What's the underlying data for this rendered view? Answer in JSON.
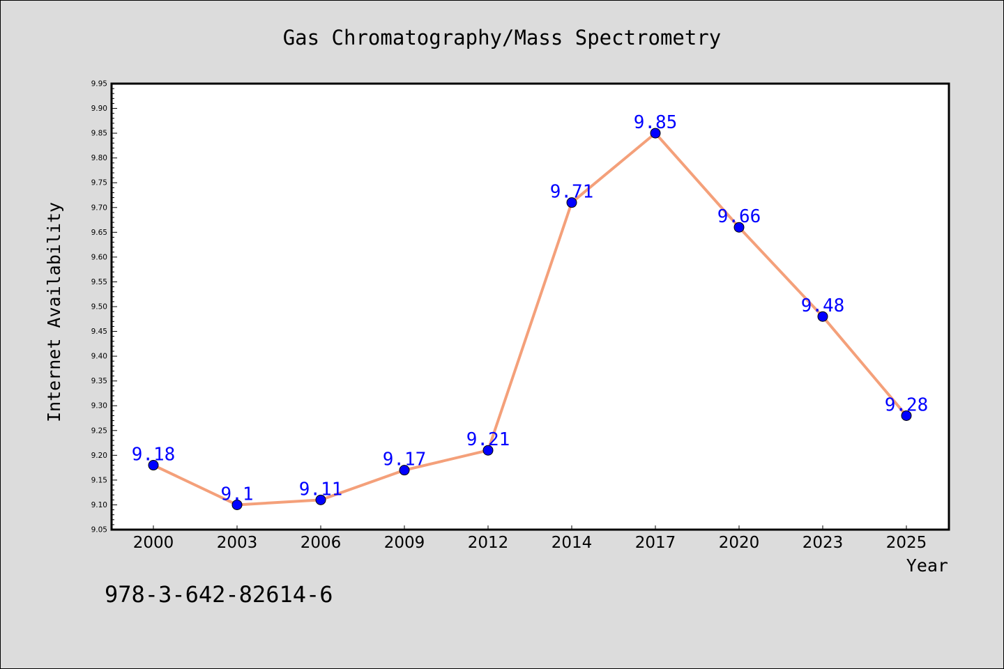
{
  "figure_id": "978-3-642-82614-6",
  "colors": {
    "background": "#dcdcdc",
    "plot_background": "#ffffff",
    "line": "#f4a07a",
    "marker": "#0000ff",
    "label": "#0000ff",
    "axis": "#000000"
  },
  "chart_data": {
    "type": "line",
    "title": "Gas Chromatography/Mass Spectrometry",
    "xlabel": "Year",
    "ylabel": "Internet Availability",
    "categories": [
      "2000",
      "2003",
      "2006",
      "2009",
      "2012",
      "2014",
      "2017",
      "2020",
      "2023",
      "2025"
    ],
    "series": [
      {
        "values": [
          9.18,
          9.1,
          9.11,
          9.17,
          9.21,
          9.71,
          9.85,
          9.66,
          9.48,
          9.28
        ],
        "labels": [
          "9.18",
          "9.1",
          "9.11",
          "9.17",
          "9.21",
          "9.71",
          "9.85",
          "9.66",
          "9.48",
          "9.28"
        ]
      }
    ],
    "ylim": [
      9.05,
      9.95
    ],
    "yticks": [
      "9.05",
      "9.10",
      "9.15",
      "9.20",
      "9.25",
      "9.30",
      "9.35",
      "9.40",
      "9.45",
      "9.50",
      "9.55",
      "9.60",
      "9.65",
      "9.70",
      "9.75",
      "9.80",
      "9.85",
      "9.90",
      "9.95"
    ],
    "grid": false,
    "legend": "none"
  }
}
